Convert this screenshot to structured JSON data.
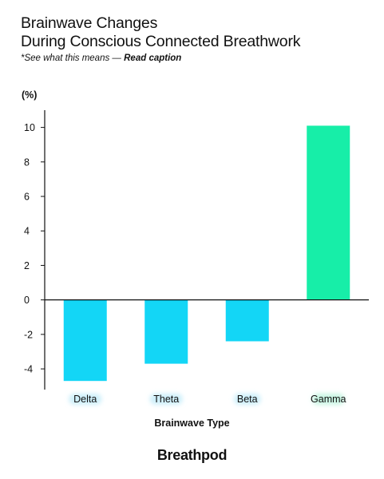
{
  "title_line1": "Brainwave Changes",
  "title_line2": "During Conscious Connected Breathwork",
  "subtitle_prefix": "*See what this means — ",
  "subtitle_link": "Read caption",
  "brand": "Breathpod",
  "colors": {
    "negative": "#13d6f6",
    "positive": "#17eea8",
    "tick_glow_negative": "#cdeffa",
    "tick_glow_positive": "#c8f5e2",
    "axis": "#111111"
  },
  "chart_data": {
    "type": "bar",
    "categories": [
      "Delta",
      "Theta",
      "Beta",
      "Gamma"
    ],
    "values": [
      -4.7,
      -3.7,
      -2.4,
      10.1
    ],
    "ylabel": "(%)",
    "xlabel": "Brainwave Type",
    "yticks": [
      10,
      8,
      6,
      4,
      2,
      0,
      -2,
      -4
    ],
    "ylim": [
      -5.2,
      11
    ],
    "grid": false
  }
}
